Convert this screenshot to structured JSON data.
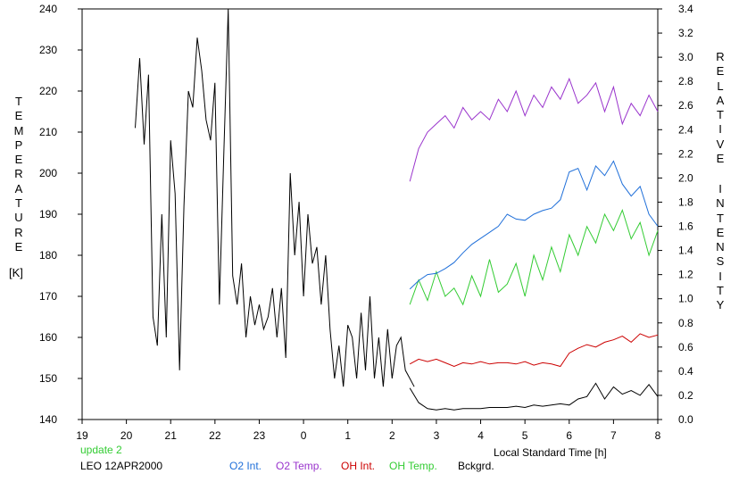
{
  "chart_data": {
    "type": "line",
    "xlabel": "Local Standard Time [h]",
    "x_axis": {
      "ticks": [
        19,
        20,
        21,
        22,
        23,
        0,
        1,
        2,
        3,
        4,
        5,
        6,
        7,
        8
      ],
      "range_hours": [
        19,
        32
      ]
    },
    "left_axis": {
      "label_letters": [
        "T",
        "E",
        "M",
        "P",
        "E",
        "R",
        "A",
        "T",
        "U",
        "R",
        "E"
      ],
      "unit": "[K]",
      "ylim": [
        140,
        240
      ],
      "ticks": [
        "140",
        "150",
        "160",
        "170",
        "180",
        "190",
        "200",
        "210",
        "220",
        "230",
        "240"
      ]
    },
    "right_axis": {
      "label_letters_1": [
        "R",
        "E",
        "L",
        "A",
        "T",
        "I",
        "V",
        "E"
      ],
      "label_letters_2": [
        "I",
        "N",
        "T",
        "E",
        "N",
        "S",
        "I",
        "T",
        "Y"
      ],
      "ylim": [
        0.0,
        3.4
      ],
      "ticks": [
        "0.0",
        "0.2",
        "0.4",
        "0.6",
        "0.8",
        "1.0",
        "1.2",
        "1.4",
        "1.6",
        "1.8",
        "2.0",
        "2.2",
        "2.4",
        "2.6",
        "2.8",
        "3.0",
        "3.2",
        "3.4"
      ]
    },
    "series": [
      {
        "name": "Bckgrd.",
        "axis": "right",
        "color": "#000000",
        "x": [
          26.4,
          26.6,
          26.8,
          27.0,
          27.2,
          27.4,
          27.6,
          27.8,
          28.0,
          28.2,
          28.4,
          28.6,
          28.8,
          29.0,
          29.2,
          29.4,
          29.6,
          29.8,
          30.0,
          30.2,
          30.4,
          30.6,
          30.8,
          31.0,
          31.2,
          31.4,
          31.6,
          31.8,
          32.0
        ],
        "y": [
          0.26,
          0.14,
          0.09,
          0.08,
          0.09,
          0.08,
          0.09,
          0.09,
          0.09,
          0.1,
          0.1,
          0.1,
          0.11,
          0.1,
          0.12,
          0.11,
          0.12,
          0.13,
          0.12,
          0.17,
          0.19,
          0.3,
          0.17,
          0.27,
          0.21,
          0.24,
          0.2,
          0.29,
          0.19
        ]
      },
      {
        "name": "OH Int.",
        "axis": "right",
        "color": "#cc0000",
        "x": [
          26.4,
          26.6,
          26.8,
          27.0,
          27.2,
          27.4,
          27.6,
          27.8,
          28.0,
          28.2,
          28.4,
          28.6,
          28.8,
          29.0,
          29.2,
          29.4,
          29.6,
          29.8,
          30.0,
          30.2,
          30.4,
          30.6,
          30.8,
          31.0,
          31.2,
          31.4,
          31.6,
          31.8,
          32.0
        ],
        "y": [
          0.46,
          0.5,
          0.48,
          0.5,
          0.47,
          0.44,
          0.47,
          0.46,
          0.48,
          0.46,
          0.47,
          0.47,
          0.46,
          0.48,
          0.45,
          0.47,
          0.46,
          0.44,
          0.55,
          0.59,
          0.62,
          0.6,
          0.64,
          0.66,
          0.69,
          0.64,
          0.71,
          0.68,
          0.7
        ]
      },
      {
        "name": "OH Temp.",
        "axis": "left",
        "color": "#33cc33",
        "x": [
          26.4,
          26.6,
          26.8,
          27.0,
          27.2,
          27.4,
          27.6,
          27.8,
          28.0,
          28.2,
          28.4,
          28.6,
          28.8,
          29.0,
          29.2,
          29.4,
          29.6,
          29.8,
          30.0,
          30.2,
          30.4,
          30.6,
          30.8,
          31.0,
          31.2,
          31.4,
          31.6,
          31.8,
          32.0
        ],
        "y": [
          168,
          174,
          169,
          176,
          170,
          172,
          168,
          175,
          170,
          179,
          171,
          173,
          178,
          170,
          180,
          174,
          182,
          176,
          185,
          180,
          187,
          183,
          190,
          186,
          191,
          184,
          188,
          180,
          186
        ]
      },
      {
        "name": "O2 Int.",
        "axis": "right",
        "color": "#1f6fd9",
        "x": [
          26.4,
          26.6,
          26.8,
          27.0,
          27.2,
          27.4,
          27.6,
          27.8,
          28.0,
          28.2,
          28.4,
          28.6,
          28.8,
          29.0,
          29.2,
          29.4,
          29.6,
          29.8,
          30.0,
          30.2,
          30.4,
          30.6,
          30.8,
          31.0,
          31.2,
          31.4,
          31.6,
          31.8,
          32.0
        ],
        "y": [
          1.08,
          1.15,
          1.2,
          1.21,
          1.25,
          1.3,
          1.38,
          1.45,
          1.5,
          1.55,
          1.6,
          1.7,
          1.66,
          1.65,
          1.7,
          1.73,
          1.75,
          1.82,
          2.05,
          2.08,
          1.9,
          2.1,
          2.02,
          2.14,
          1.95,
          1.85,
          1.93,
          1.7,
          1.6
        ]
      },
      {
        "name": "O2 Temp.",
        "axis": "left",
        "color": "#9933cc",
        "x": [
          26.4,
          26.6,
          26.8,
          27.0,
          27.2,
          27.4,
          27.6,
          27.8,
          28.0,
          28.2,
          28.4,
          28.6,
          28.8,
          29.0,
          29.2,
          29.4,
          29.6,
          29.8,
          30.0,
          30.2,
          30.4,
          30.6,
          30.8,
          31.0,
          31.2,
          31.4,
          31.6,
          31.8,
          32.0
        ],
        "y": [
          198,
          206,
          210,
          212,
          214,
          211,
          216,
          213,
          215,
          213,
          218,
          215,
          220,
          214,
          219,
          216,
          221,
          218,
          223,
          217,
          219,
          222,
          215,
          221,
          212,
          217,
          214,
          219,
          215
        ]
      },
      {
        "name": "Temperature",
        "axis": "left",
        "color": "#000000",
        "x": [
          20.2,
          20.3,
          20.4,
          20.5,
          20.6,
          20.7,
          20.8,
          20.9,
          21.0,
          21.1,
          21.2,
          21.3,
          21.4,
          21.5,
          21.6,
          21.7,
          21.8,
          21.9,
          22.0,
          22.1,
          22.2,
          22.3,
          22.4,
          22.5,
          22.6,
          22.7,
          22.8,
          22.9,
          23.0,
          23.1,
          23.2,
          23.3,
          23.4,
          23.5,
          23.6,
          23.7,
          23.8,
          23.9,
          24.0,
          24.1,
          24.2,
          24.3,
          24.4,
          24.5,
          24.6,
          24.7,
          24.8,
          24.9,
          25.0,
          25.1,
          25.2,
          25.3,
          25.4,
          25.5,
          25.6,
          25.7,
          25.8,
          25.9,
          26.0,
          26.1,
          26.2,
          26.3,
          26.4,
          26.5
        ],
        "y": [
          211,
          228,
          207,
          224,
          165,
          158,
          190,
          160,
          208,
          195,
          152,
          192,
          220,
          216,
          233,
          225,
          213,
          208,
          222,
          168,
          205,
          240,
          175,
          168,
          178,
          160,
          170,
          163,
          168,
          162,
          165,
          172,
          160,
          172,
          155,
          200,
          180,
          193,
          170,
          190,
          178,
          182,
          168,
          180,
          162,
          150,
          158,
          148,
          163,
          160,
          150,
          166,
          152,
          170,
          150,
          160,
          148,
          162,
          150,
          158,
          160,
          152,
          150,
          148
        ]
      }
    ],
    "legend": [
      {
        "label": "O2 Int.",
        "color": "#1f6fd9"
      },
      {
        "label": "O2 Temp.",
        "color": "#9933cc"
      },
      {
        "label": "OH Int.",
        "color": "#cc0000"
      },
      {
        "label": "OH Temp.",
        "color": "#33cc33"
      },
      {
        "label": "Bckgrd.",
        "color": "#000000"
      }
    ],
    "annotations": {
      "update": "update 2",
      "station_date": "LEO 12APR2000"
    }
  },
  "colors": {
    "update": "#33cc33",
    "station": "#000000"
  }
}
